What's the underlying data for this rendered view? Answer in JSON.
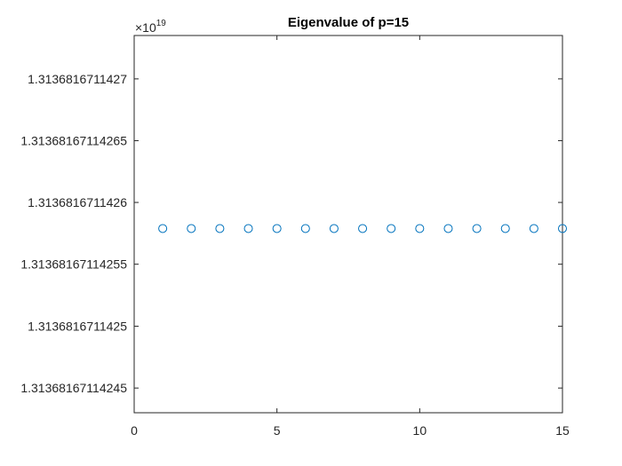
{
  "chart_data": {
    "type": "scatter",
    "title": "Eigenvalue of p=15",
    "xlabel": "",
    "ylabel": "",
    "xlim": [
      0,
      15
    ],
    "ylim": [
      1.31368167114243,
      1.313681671142735
    ],
    "x_ticks": [
      0,
      5,
      10,
      15
    ],
    "x_tick_labels": [
      "0",
      "5",
      "10",
      "15"
    ],
    "y_ticks": [
      1.31368167114245,
      1.3136816711425,
      1.31368167114255,
      1.3136816711426,
      1.31368167114265,
      1.3136816711427
    ],
    "y_tick_labels": [
      "1.3136816711424​5",
      "1.3136816711425",
      "1.31368167114255",
      "1.3136816711426",
      "1.31368167114265",
      "1.3136816711427"
    ],
    "y_exponent": {
      "prefix": "×10",
      "power": "19"
    },
    "marker": "circle-open",
    "series_color": "#0072BD",
    "grid": false,
    "x": [
      1,
      2,
      3,
      4,
      5,
      6,
      7,
      8,
      9,
      10,
      11,
      12,
      13,
      14,
      15
    ],
    "y": [
      1.313681671142579,
      1.313681671142579,
      1.313681671142579,
      1.313681671142579,
      1.313681671142579,
      1.313681671142579,
      1.313681671142579,
      1.313681671142579,
      1.313681671142579,
      1.313681671142579,
      1.313681671142579,
      1.313681671142579,
      1.313681671142579,
      1.313681671142579,
      1.313681671142579
    ]
  }
}
